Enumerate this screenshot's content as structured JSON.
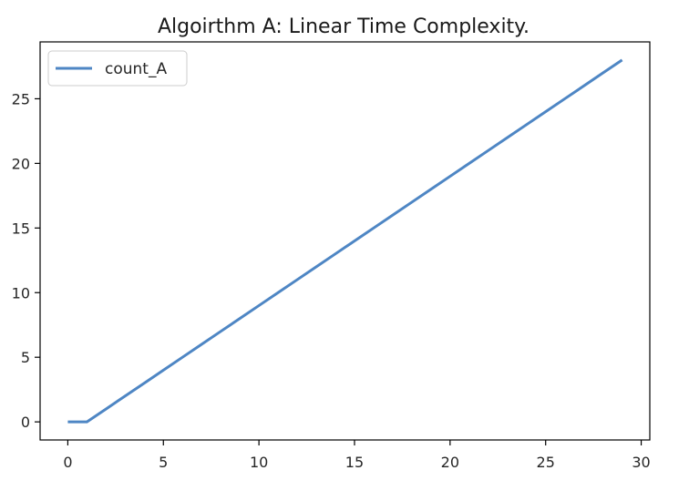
{
  "chart_data": {
    "type": "line",
    "title": "Algoirthm A: Linear Time Complexity.",
    "xlabel": "",
    "ylabel": "",
    "xlim": [
      -1.45,
      30.45
    ],
    "ylim": [
      -1.4,
      29.4
    ],
    "x_ticks": [
      0,
      5,
      10,
      15,
      20,
      25,
      30
    ],
    "y_ticks": [
      0,
      5,
      10,
      15,
      20,
      25
    ],
    "grid": false,
    "legend": {
      "placement": "upper left"
    },
    "series": [
      {
        "name": "count_A",
        "color": "#4e86c4",
        "x": [
          0,
          1,
          2,
          3,
          4,
          5,
          6,
          7,
          8,
          9,
          10,
          11,
          12,
          13,
          14,
          15,
          16,
          17,
          18,
          19,
          20,
          21,
          22,
          23,
          24,
          25,
          26,
          27,
          28,
          29
        ],
        "y": [
          0,
          0,
          1,
          2,
          3,
          4,
          5,
          6,
          7,
          8,
          9,
          10,
          11,
          12,
          13,
          14,
          15,
          16,
          17,
          18,
          19,
          20,
          21,
          22,
          23,
          24,
          25,
          26,
          27,
          28
        ]
      }
    ]
  }
}
